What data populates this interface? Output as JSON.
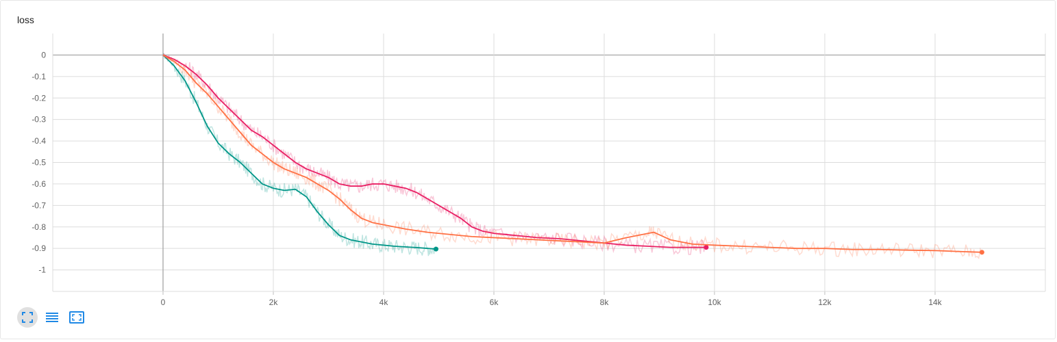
{
  "card": {
    "title": "loss"
  },
  "toolbar": {
    "buttons": [
      {
        "name": "fit-domain-button",
        "icon": "fullscreen-icon"
      },
      {
        "name": "toggle-y-log-button",
        "icon": "list-icon"
      },
      {
        "name": "expand-chart-button",
        "icon": "expand-icon"
      }
    ]
  },
  "chart_data": {
    "type": "line",
    "title": "loss",
    "xlabel": "",
    "ylabel": "",
    "xlim": [
      -2000,
      16000
    ],
    "ylim": [
      -1.1,
      0.1
    ],
    "x_ticks": [
      0,
      2000,
      4000,
      6000,
      8000,
      10000,
      12000,
      14000
    ],
    "x_tick_labels": [
      "0",
      "2k",
      "4k",
      "6k",
      "8k",
      "10k",
      "12k",
      "14k"
    ],
    "y_ticks": [
      0,
      -0.1,
      -0.2,
      -0.3,
      -0.4,
      -0.5,
      -0.6,
      -0.7,
      -0.8,
      -0.9,
      -1
    ],
    "y_tick_labels": [
      "0",
      "-0.1",
      "-0.2",
      "-0.3",
      "-0.4",
      "-0.5",
      "-0.6",
      "-0.7",
      "-0.8",
      "-0.9",
      "-1"
    ],
    "grid": true,
    "series": [
      {
        "color": "#009688",
        "x": [
          0,
          200,
          400,
          600,
          800,
          1000,
          1200,
          1400,
          1600,
          1800,
          2000,
          2200,
          2400,
          2600,
          2800,
          3000,
          3200,
          3400,
          3600,
          3800,
          4000,
          4200,
          4400,
          4600,
          4800,
          4950
        ],
        "y": [
          0,
          -0.05,
          -0.12,
          -0.22,
          -0.33,
          -0.41,
          -0.46,
          -0.5,
          -0.55,
          -0.6,
          -0.62,
          -0.63,
          -0.625,
          -0.66,
          -0.73,
          -0.79,
          -0.84,
          -0.86,
          -0.87,
          -0.88,
          -0.885,
          -0.89,
          -0.893,
          -0.896,
          -0.9,
          -0.903
        ]
      },
      {
        "color": "#e91e63",
        "x": [
          0,
          200,
          400,
          600,
          800,
          1000,
          1200,
          1400,
          1600,
          1800,
          2000,
          2200,
          2400,
          2600,
          2800,
          3000,
          3200,
          3400,
          3600,
          3800,
          4000,
          4200,
          4400,
          4600,
          4800,
          5000,
          5200,
          5400,
          5600,
          5800,
          6000,
          6400,
          6800,
          7200,
          7600,
          8000,
          8400,
          8800,
          9200,
          9600,
          9850
        ],
        "y": [
          0,
          -0.02,
          -0.05,
          -0.09,
          -0.14,
          -0.2,
          -0.25,
          -0.3,
          -0.35,
          -0.38,
          -0.42,
          -0.46,
          -0.5,
          -0.53,
          -0.55,
          -0.57,
          -0.6,
          -0.61,
          -0.61,
          -0.6,
          -0.6,
          -0.61,
          -0.62,
          -0.64,
          -0.67,
          -0.7,
          -0.73,
          -0.76,
          -0.8,
          -0.82,
          -0.83,
          -0.84,
          -0.85,
          -0.855,
          -0.865,
          -0.875,
          -0.885,
          -0.89,
          -0.895,
          -0.895,
          -0.895
        ]
      },
      {
        "color": "#ff7043",
        "x": [
          0,
          200,
          400,
          600,
          800,
          1000,
          1200,
          1400,
          1600,
          1800,
          2000,
          2200,
          2400,
          2600,
          2800,
          3000,
          3200,
          3400,
          3600,
          3800,
          4000,
          4400,
          4800,
          5200,
          5600,
          6000,
          6400,
          6800,
          7200,
          7600,
          8000,
          8400,
          8800,
          8900,
          9200,
          9600,
          10000,
          10500,
          11000,
          11500,
          12000,
          12500,
          13000,
          13500,
          14000,
          14500,
          14850
        ],
        "y": [
          0,
          -0.03,
          -0.07,
          -0.13,
          -0.18,
          -0.24,
          -0.3,
          -0.36,
          -0.42,
          -0.46,
          -0.5,
          -0.53,
          -0.55,
          -0.57,
          -0.6,
          -0.63,
          -0.67,
          -0.72,
          -0.76,
          -0.78,
          -0.79,
          -0.81,
          -0.825,
          -0.835,
          -0.845,
          -0.85,
          -0.855,
          -0.86,
          -0.865,
          -0.87,
          -0.875,
          -0.85,
          -0.83,
          -0.825,
          -0.86,
          -0.88,
          -0.885,
          -0.89,
          -0.895,
          -0.9,
          -0.9,
          -0.905,
          -0.905,
          -0.908,
          -0.91,
          -0.915,
          -0.918
        ]
      }
    ]
  }
}
